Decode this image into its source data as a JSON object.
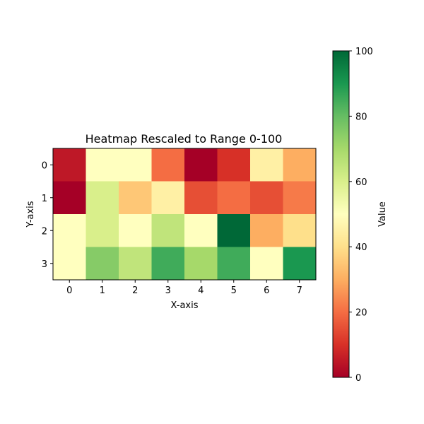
{
  "chart_data": {
    "type": "heatmap",
    "title": "Heatmap Rescaled to Range 0-100",
    "xlabel": "X-axis",
    "ylabel": "Y-axis",
    "x_categories": [
      "0",
      "1",
      "2",
      "3",
      "4",
      "5",
      "6",
      "7"
    ],
    "y_categories": [
      "0",
      "1",
      "2",
      "3"
    ],
    "values": [
      [
        5,
        50,
        50,
        20,
        0,
        10,
        45,
        30
      ],
      [
        0,
        60,
        35,
        45,
        15,
        20,
        15,
        22
      ],
      [
        50,
        60,
        50,
        65,
        50,
        100,
        30,
        40
      ],
      [
        50,
        75,
        65,
        85,
        70,
        85,
        50,
        90
      ]
    ],
    "colormap": "RdYlGn",
    "value_range": [
      0,
      100
    ],
    "colorbar": {
      "label": "Value",
      "ticks": [
        "0",
        "20",
        "40",
        "60",
        "80",
        "100"
      ]
    }
  }
}
